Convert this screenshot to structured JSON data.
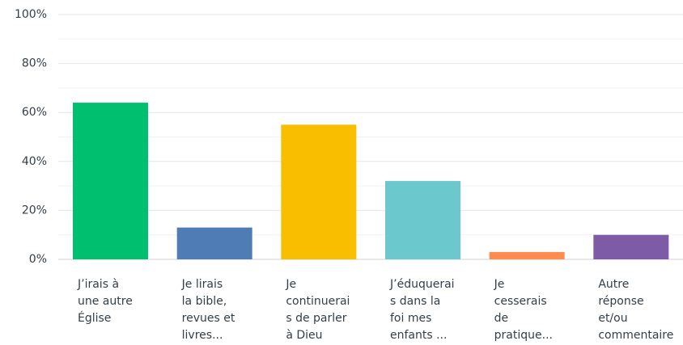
{
  "chart_data": {
    "type": "bar",
    "categories": [
      [
        "J’irais à",
        "une autre",
        "Église"
      ],
      [
        "Je lirais",
        "la bible,",
        "revues et",
        "livres..."
      ],
      [
        "Je",
        "continuerai",
        "s de parler",
        "à Dieu"
      ],
      [
        "J’éduquerai",
        "s dans la",
        "foi mes",
        "enfants ..."
      ],
      [
        "Je",
        "cesserais",
        "de",
        "pratique..."
      ],
      [
        "Autre",
        "réponse",
        "et/ou",
        "commentaire"
      ]
    ],
    "values": [
      64,
      13,
      55,
      32,
      3,
      10
    ],
    "colors": [
      "#00bf6f",
      "#507cb6",
      "#f9be00",
      "#6bc8cd",
      "#ff8b4f",
      "#7d5ba6"
    ],
    "ylim": [
      0,
      100
    ],
    "yticks": [
      {
        "value": 0,
        "label": "0%"
      },
      {
        "value": 20,
        "label": "20%"
      },
      {
        "value": 40,
        "label": "40%"
      },
      {
        "value": 60,
        "label": "60%"
      },
      {
        "value": 80,
        "label": "80%"
      },
      {
        "value": 100,
        "label": "100%"
      }
    ],
    "minor_yticks": [
      10,
      30,
      50,
      70,
      90
    ],
    "grid": true
  }
}
